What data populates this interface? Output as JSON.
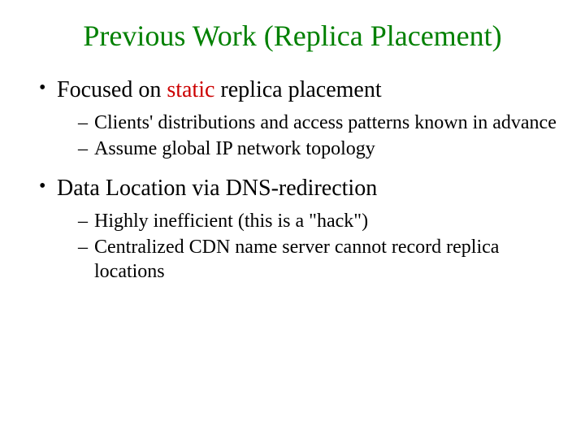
{
  "colors": {
    "title": "#008000",
    "highlight": "#cc0000",
    "body": "#000000",
    "background": "#ffffff"
  },
  "typography": {
    "title_fontsize": 36,
    "bullet_fontsize": 28,
    "subbullet_fontsize": 24,
    "font_family": "Times New Roman"
  },
  "title": "Previous Work (Replica Placement)",
  "bullets": [
    {
      "prefix": "Focused on ",
      "highlight": "static",
      "suffix": " replica placement",
      "sub": [
        "Clients' distributions and access patterns known in advance",
        "Assume global IP network topology"
      ]
    },
    {
      "prefix": "Data Location via DNS-redirection",
      "highlight": "",
      "suffix": "",
      "sub": [
        "Highly inefficient (this is a \"hack\")",
        "Centralized CDN name server cannot record replica locations"
      ]
    }
  ]
}
